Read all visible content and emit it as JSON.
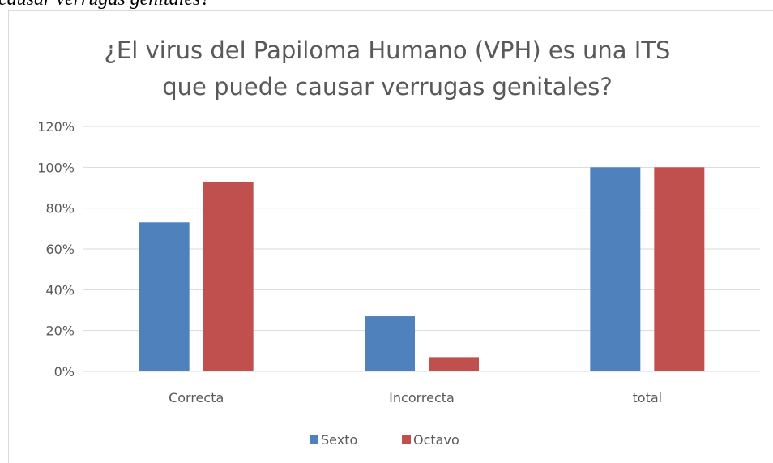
{
  "caption": "causar verrugas genitales?",
  "chart_data": {
    "type": "bar",
    "title": [
      "¿El virus del Papiloma Humano (VPH) es una ITS",
      "que puede causar verrugas genitales?"
    ],
    "categories": [
      "Correcta",
      "Incorrecta",
      "total"
    ],
    "series": [
      {
        "name": "Sexto",
        "color": "#4f81bd",
        "values": [
          73,
          27,
          100
        ]
      },
      {
        "name": "Octavo",
        "color": "#c0504d",
        "values": [
          93,
          7,
          100
        ]
      }
    ],
    "ylim": [
      0,
      120
    ],
    "yticks": [
      {
        "value": 0,
        "label": "0%"
      },
      {
        "value": 20,
        "label": "20%"
      },
      {
        "value": 40,
        "label": "40%"
      },
      {
        "value": 60,
        "label": "60%"
      },
      {
        "value": 80,
        "label": "80%"
      },
      {
        "value": 100,
        "label": "100%"
      },
      {
        "value": 120,
        "label": "120%"
      }
    ],
    "grid": true,
    "legend": "bottom"
  }
}
